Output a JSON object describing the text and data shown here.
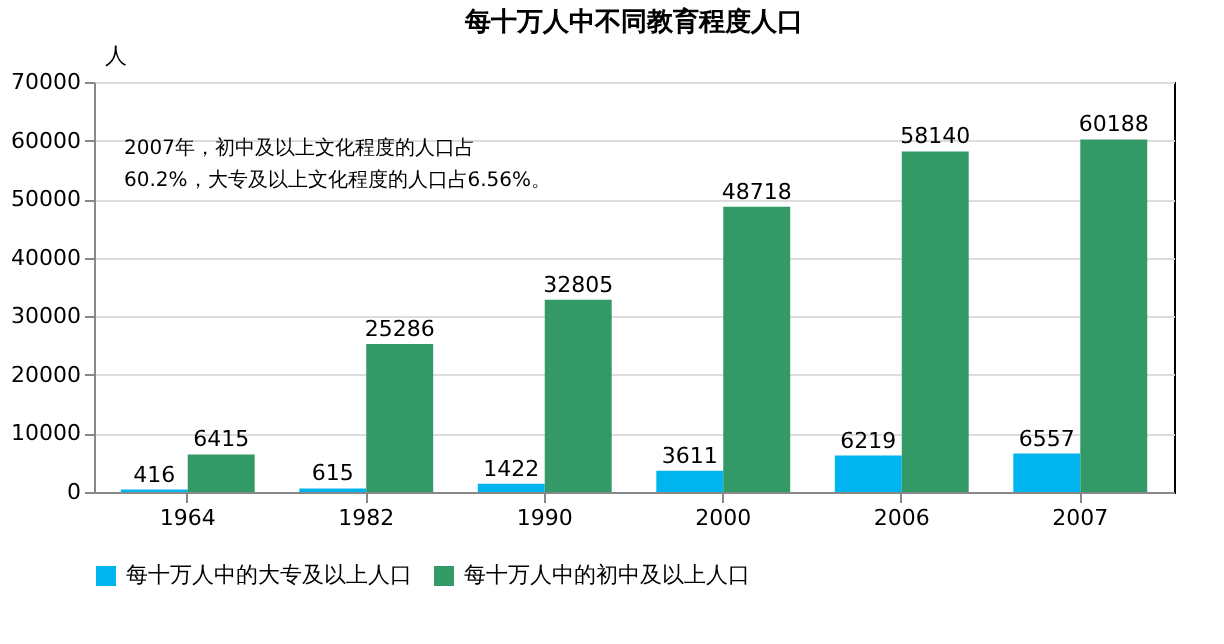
{
  "chart_data": {
    "type": "bar",
    "title": "每十万人中不同教育程度人口",
    "ylabel": "人",
    "categories": [
      "1964",
      "1982",
      "1990",
      "2000",
      "2006",
      "2007"
    ],
    "series": [
      {
        "name": "每十万人中的大专及以上人口",
        "color": "#00b4f0",
        "values": [
          416,
          615,
          1422,
          3611,
          6219,
          6557
        ]
      },
      {
        "name": "每十万人中的初中及以上人口",
        "color": "#339966",
        "values": [
          6415,
          25286,
          32805,
          48718,
          58140,
          60188
        ]
      }
    ],
    "ylim": [
      0,
      70000
    ],
    "yticks": [
      0,
      10000,
      20000,
      30000,
      40000,
      50000,
      60000,
      70000
    ],
    "grid": "y",
    "legend": "bottom",
    "data_labels": true,
    "annotations": [
      "2007年，初中及以上文化程度的人口占",
      "60.2%，大专及以上文化程度的人口占6.56%。"
    ]
  }
}
